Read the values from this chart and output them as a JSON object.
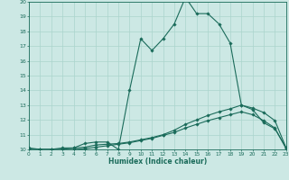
{
  "xlabel": "Humidex (Indice chaleur)",
  "background_color": "#cce8e4",
  "grid_color": "#aad4cc",
  "line_color": "#1a6b5a",
  "xlim": [
    0,
    23
  ],
  "ylim": [
    10,
    20
  ],
  "xticks": [
    0,
    1,
    2,
    3,
    4,
    5,
    6,
    7,
    8,
    9,
    10,
    11,
    12,
    13,
    14,
    15,
    16,
    17,
    18,
    19,
    20,
    21,
    22,
    23
  ],
  "yticks": [
    10,
    11,
    12,
    13,
    14,
    15,
    16,
    17,
    18,
    19,
    20
  ],
  "line1_y": [
    10.1,
    10.0,
    10.0,
    10.1,
    10.1,
    10.4,
    10.5,
    10.5,
    10.0,
    14.0,
    17.5,
    16.7,
    17.5,
    18.5,
    20.3,
    19.2,
    19.2,
    18.5,
    17.2,
    13.0,
    12.7,
    11.8,
    11.4,
    10.1
  ],
  "line2_y": [
    10.0,
    10.0,
    10.0,
    10.0,
    10.1,
    10.15,
    10.3,
    10.35,
    10.4,
    10.5,
    10.65,
    10.8,
    11.0,
    11.3,
    11.7,
    12.0,
    12.3,
    12.55,
    12.75,
    13.0,
    12.8,
    12.5,
    11.95,
    10.1
  ],
  "line3_y": [
    10.0,
    10.0,
    10.0,
    10.0,
    10.0,
    10.05,
    10.15,
    10.25,
    10.35,
    10.45,
    10.6,
    10.75,
    10.95,
    11.15,
    11.45,
    11.7,
    11.95,
    12.15,
    12.35,
    12.55,
    12.35,
    11.95,
    11.45,
    10.05
  ]
}
